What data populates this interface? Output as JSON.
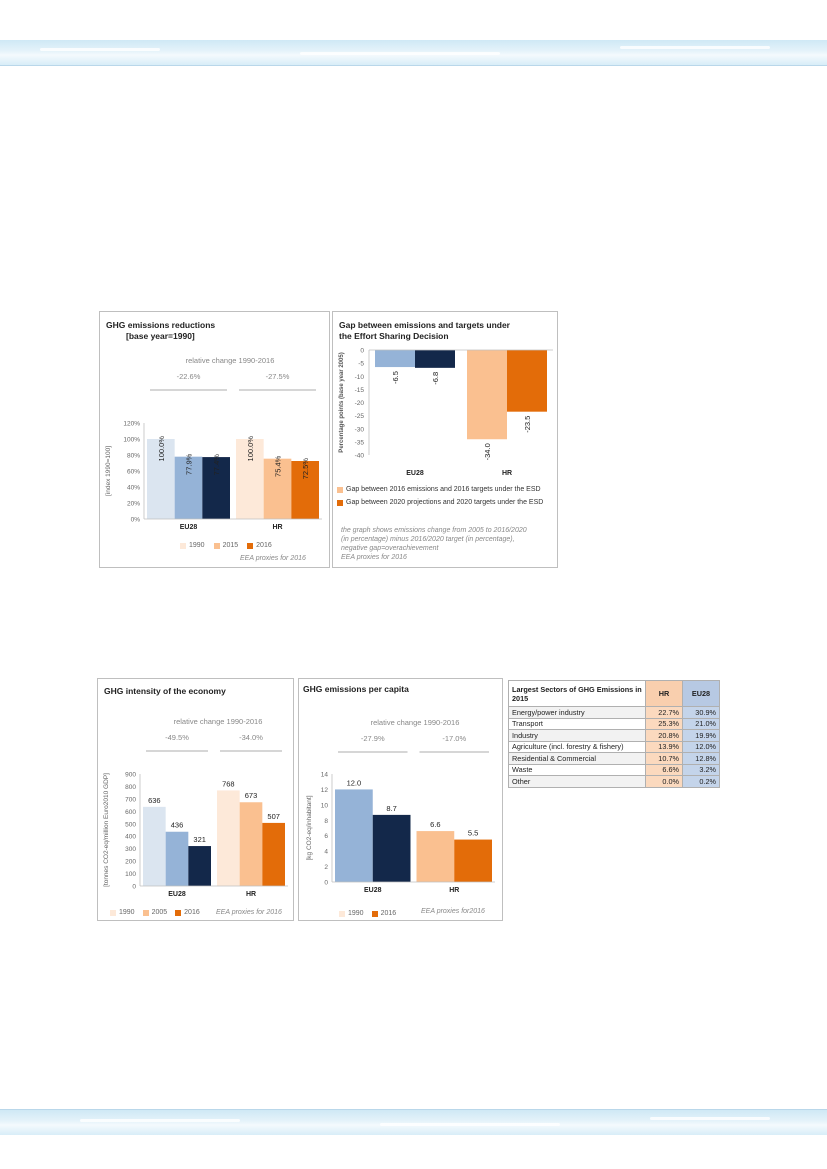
{
  "panels": {
    "ghg_reductions": {
      "title_line1": "GHG emissions reductions",
      "title_line2": "[base year=1990]",
      "relative_change_label": "relative change 1990-2016",
      "change_eu28": "-22.6%",
      "change_hr": "-27.5%",
      "note": "EEA proxies for 2016"
    },
    "esd_gap": {
      "title_line1": "Gap between emissions and targets under",
      "title_line2": "the Effort Sharing Decision",
      "note_lines": [
        "the graph shows emissions change from 2005 to 2016/2020",
        "(in percentage) minus  2016/2020 target (in percentage),",
        "negative gap=overachievement",
        "EEA proxies for 2016"
      ]
    },
    "ghg_intensity": {
      "title": "GHG intensity of the economy",
      "relative_change_label": "relative change 1990-2016",
      "change_eu28": "-49.5%",
      "change_hr": "-34.0%",
      "note": "EEA proxies for 2016"
    },
    "ghg_per_capita": {
      "title": "GHG emissions per capita",
      "relative_change_label": "relative change 1990-2016",
      "change_eu28": "-27.9%",
      "change_hr": "-17.0%",
      "note": "EEA proxies  for2016"
    }
  },
  "colors": {
    "eu_1990": "#dbe5f0",
    "eu_2005": "#95b3d7",
    "eu_2016": "#13284a",
    "hr_1990": "#fde9d9",
    "hr_2005": "#fac090",
    "hr_2016": "#e36c09"
  },
  "chart_data": [
    {
      "id": "ghg_reductions",
      "type": "bar",
      "categories": [
        "EU28",
        "HR"
      ],
      "series": [
        {
          "name": "1990",
          "values": [
            100.0,
            100.0
          ],
          "labels": [
            "100.0%",
            "100.0%"
          ]
        },
        {
          "name": "2015",
          "values": [
            77.9,
            75.4
          ],
          "labels": [
            "77.9%",
            "75.4%"
          ]
        },
        {
          "name": "2016",
          "values": [
            77.4,
            72.5
          ],
          "labels": [
            "77.4%",
            "72.5%"
          ]
        }
      ],
      "ylabel": "[index 1990=100]",
      "ylim": [
        0,
        120
      ],
      "yticks": [
        "0%",
        "20%",
        "40%",
        "60%",
        "80%",
        "100%",
        "120%"
      ],
      "grid": false,
      "legend": "bottom"
    },
    {
      "id": "esd_gap",
      "type": "bar",
      "categories": [
        "EU28",
        "HR"
      ],
      "series": [
        {
          "name": "Gap between 2016 emissions and 2016 targets under the ESD",
          "values": [
            -6.5,
            -34.0
          ],
          "labels": [
            "-6.5",
            "-34.0"
          ]
        },
        {
          "name": "Gap between 2020 projections and 2020 targets under the ESD",
          "values": [
            -6.8,
            -23.5
          ],
          "labels": [
            "-6.8",
            "-23.5"
          ]
        }
      ],
      "ylabel": "Percentage points (base year 2005)",
      "ylim": [
        -40,
        0
      ],
      "yticks": [
        "0",
        "-5",
        "-10",
        "-15",
        "-20",
        "-25",
        "-30",
        "-35",
        "-40"
      ],
      "grid": false,
      "legend": "bottom"
    },
    {
      "id": "ghg_intensity",
      "type": "bar",
      "categories": [
        "EU28",
        "HR"
      ],
      "series": [
        {
          "name": "1990",
          "values": [
            636,
            768
          ],
          "labels": [
            "636",
            "768"
          ]
        },
        {
          "name": "2005",
          "values": [
            436,
            673
          ],
          "labels": [
            "436",
            "673"
          ]
        },
        {
          "name": "2016",
          "values": [
            321,
            507
          ],
          "labels": [
            "321",
            "507"
          ]
        }
      ],
      "ylabel": "[tonnes CO2-eq/million Euro2010 GDP]",
      "ylim": [
        0,
        900
      ],
      "yticks": [
        "0",
        "100",
        "200",
        "300",
        "400",
        "500",
        "600",
        "700",
        "800",
        "900"
      ],
      "grid": false,
      "legend": "bottom"
    },
    {
      "id": "ghg_per_capita",
      "type": "bar",
      "categories": [
        "EU28",
        "HR"
      ],
      "series": [
        {
          "name": "1990",
          "values": [
            12.0,
            6.6
          ],
          "labels": [
            "12.0",
            "6.6"
          ]
        },
        {
          "name": "2016",
          "values": [
            8.7,
            5.5
          ],
          "labels": [
            "8.7",
            "5.5"
          ]
        }
      ],
      "ylabel": "[kg CO2-eq/inhabitant]",
      "ylim": [
        0,
        14
      ],
      "yticks": [
        "0",
        "2",
        "4",
        "6",
        "8",
        "10",
        "12",
        "14"
      ],
      "grid": false,
      "legend": "bottom"
    },
    {
      "id": "largest_sectors",
      "type": "table",
      "title": "Largest Sectors of GHG Emissions in 2015",
      "columns": [
        "HR",
        "EU28"
      ],
      "rows": [
        {
          "sector": "Energy/power industry",
          "hr": "22.7%",
          "eu28": "30.9%"
        },
        {
          "sector": "Transport",
          "hr": "25.3%",
          "eu28": "21.0%"
        },
        {
          "sector": "Industry",
          "hr": "20.8%",
          "eu28": "19.9%"
        },
        {
          "sector": "Agriculture (incl. forestry & fishery)",
          "hr": "13.9%",
          "eu28": "12.0%"
        },
        {
          "sector": "Residential & Commercial",
          "hr": "10.7%",
          "eu28": "12.8%"
        },
        {
          "sector": "Waste",
          "hr": "6.6%",
          "eu28": "3.2%"
        },
        {
          "sector": "Other",
          "hr": "0.0%",
          "eu28": "0.2%"
        }
      ]
    }
  ]
}
